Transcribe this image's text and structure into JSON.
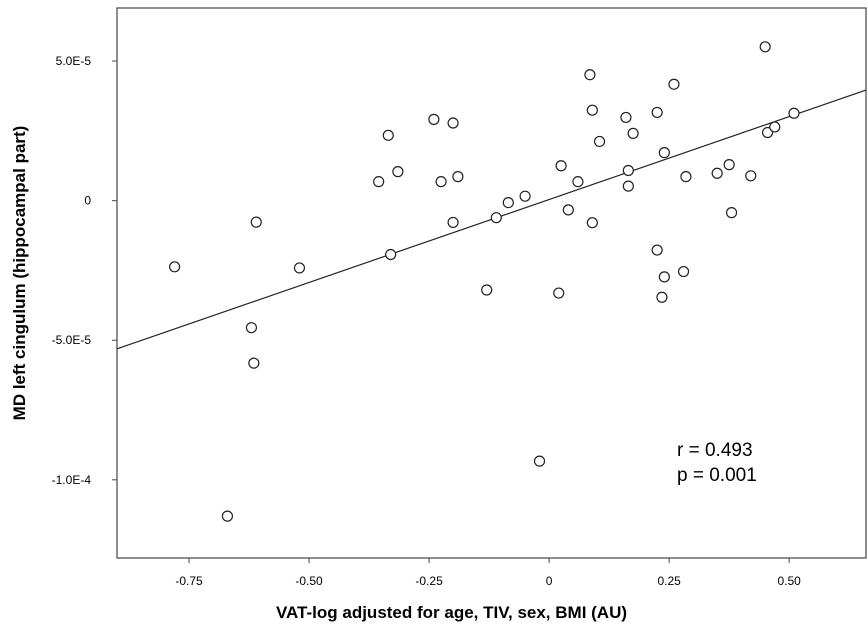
{
  "chart_data": {
    "type": "scatter",
    "xlabel": "VAT-log adjusted for age, TIV, sex, BMI (AU)",
    "ylabel": "MD left cingulum (hippocampal part)",
    "xlim": [
      -0.9,
      0.66
    ],
    "ylim": [
      -0.000128,
      6.9e-05
    ],
    "x_ticks": [
      {
        "value": -0.75,
        "label": "-0.75"
      },
      {
        "value": -0.5,
        "label": "-0.50"
      },
      {
        "value": -0.25,
        "label": "-0.25"
      },
      {
        "value": 0,
        "label": "0"
      },
      {
        "value": 0.25,
        "label": "0.25"
      },
      {
        "value": 0.5,
        "label": "0.50"
      }
    ],
    "y_ticks": [
      {
        "value": 5e-05,
        "label": "5.0E-5"
      },
      {
        "value": 0,
        "label": "0"
      },
      {
        "value": -5e-05,
        "label": "-5.0E-5"
      },
      {
        "value": -0.0001,
        "label": "-1.0E-4"
      }
    ],
    "grid": false,
    "fit_line": {
      "slope": 5.94e-05,
      "intercept": 4e-07
    },
    "annotations": [
      "r = 0.493",
      "p = 0.001"
    ],
    "points": [
      {
        "x": -0.78,
        "y": -2.37e-05
      },
      {
        "x": -0.67,
        "y": -0.000113
      },
      {
        "x": -0.61,
        "y": -7.7e-06
      },
      {
        "x": -0.62,
        "y": -4.55e-05
      },
      {
        "x": -0.615,
        "y": -5.82e-05
      },
      {
        "x": -0.52,
        "y": -2.41e-05
      },
      {
        "x": -0.355,
        "y": 6.8e-06
      },
      {
        "x": -0.335,
        "y": 2.34e-05
      },
      {
        "x": -0.315,
        "y": 1.04e-05
      },
      {
        "x": -0.33,
        "y": -1.93e-05
      },
      {
        "x": -0.24,
        "y": 2.91e-05
      },
      {
        "x": -0.225,
        "y": 6.8e-06
      },
      {
        "x": -0.2,
        "y": 2.78e-05
      },
      {
        "x": -0.19,
        "y": 8.6e-06
      },
      {
        "x": -0.2,
        "y": -7.8e-06
      },
      {
        "x": -0.13,
        "y": -3.2e-05
      },
      {
        "x": -0.11,
        "y": -6.1e-06
      },
      {
        "x": -0.085,
        "y": -7e-07
      },
      {
        "x": -0.05,
        "y": 1.6e-06
      },
      {
        "x": -0.02,
        "y": -9.33e-05
      },
      {
        "x": 0.02,
        "y": -3.31e-05
      },
      {
        "x": 0.025,
        "y": 1.25e-05
      },
      {
        "x": 0.04,
        "y": -3.3e-06
      },
      {
        "x": 0.06,
        "y": 6.8e-06
      },
      {
        "x": 0.085,
        "y": 4.51e-05
      },
      {
        "x": 0.09,
        "y": 3.24e-05
      },
      {
        "x": 0.09,
        "y": -7.9e-06
      },
      {
        "x": 0.105,
        "y": 2.12e-05
      },
      {
        "x": 0.16,
        "y": 2.98e-05
      },
      {
        "x": 0.165,
        "y": 1.08e-05
      },
      {
        "x": 0.165,
        "y": 5.2e-06
      },
      {
        "x": 0.175,
        "y": 2.41e-05
      },
      {
        "x": 0.225,
        "y": 3.16e-05
      },
      {
        "x": 0.225,
        "y": -1.77e-05
      },
      {
        "x": 0.24,
        "y": 1.72e-05
      },
      {
        "x": 0.24,
        "y": -2.73e-05
      },
      {
        "x": 0.235,
        "y": -3.46e-05
      },
      {
        "x": 0.26,
        "y": 4.17e-05
      },
      {
        "x": 0.28,
        "y": -2.54e-05
      },
      {
        "x": 0.285,
        "y": 8.6e-06
      },
      {
        "x": 0.35,
        "y": 9.8e-06
      },
      {
        "x": 0.375,
        "y": 1.29e-05
      },
      {
        "x": 0.38,
        "y": -4.3e-06
      },
      {
        "x": 0.42,
        "y": 8.9e-06
      },
      {
        "x": 0.45,
        "y": 5.51e-05
      },
      {
        "x": 0.455,
        "y": 2.44e-05
      },
      {
        "x": 0.47,
        "y": 2.64e-05
      },
      {
        "x": 0.51,
        "y": 3.13e-05
      }
    ]
  }
}
